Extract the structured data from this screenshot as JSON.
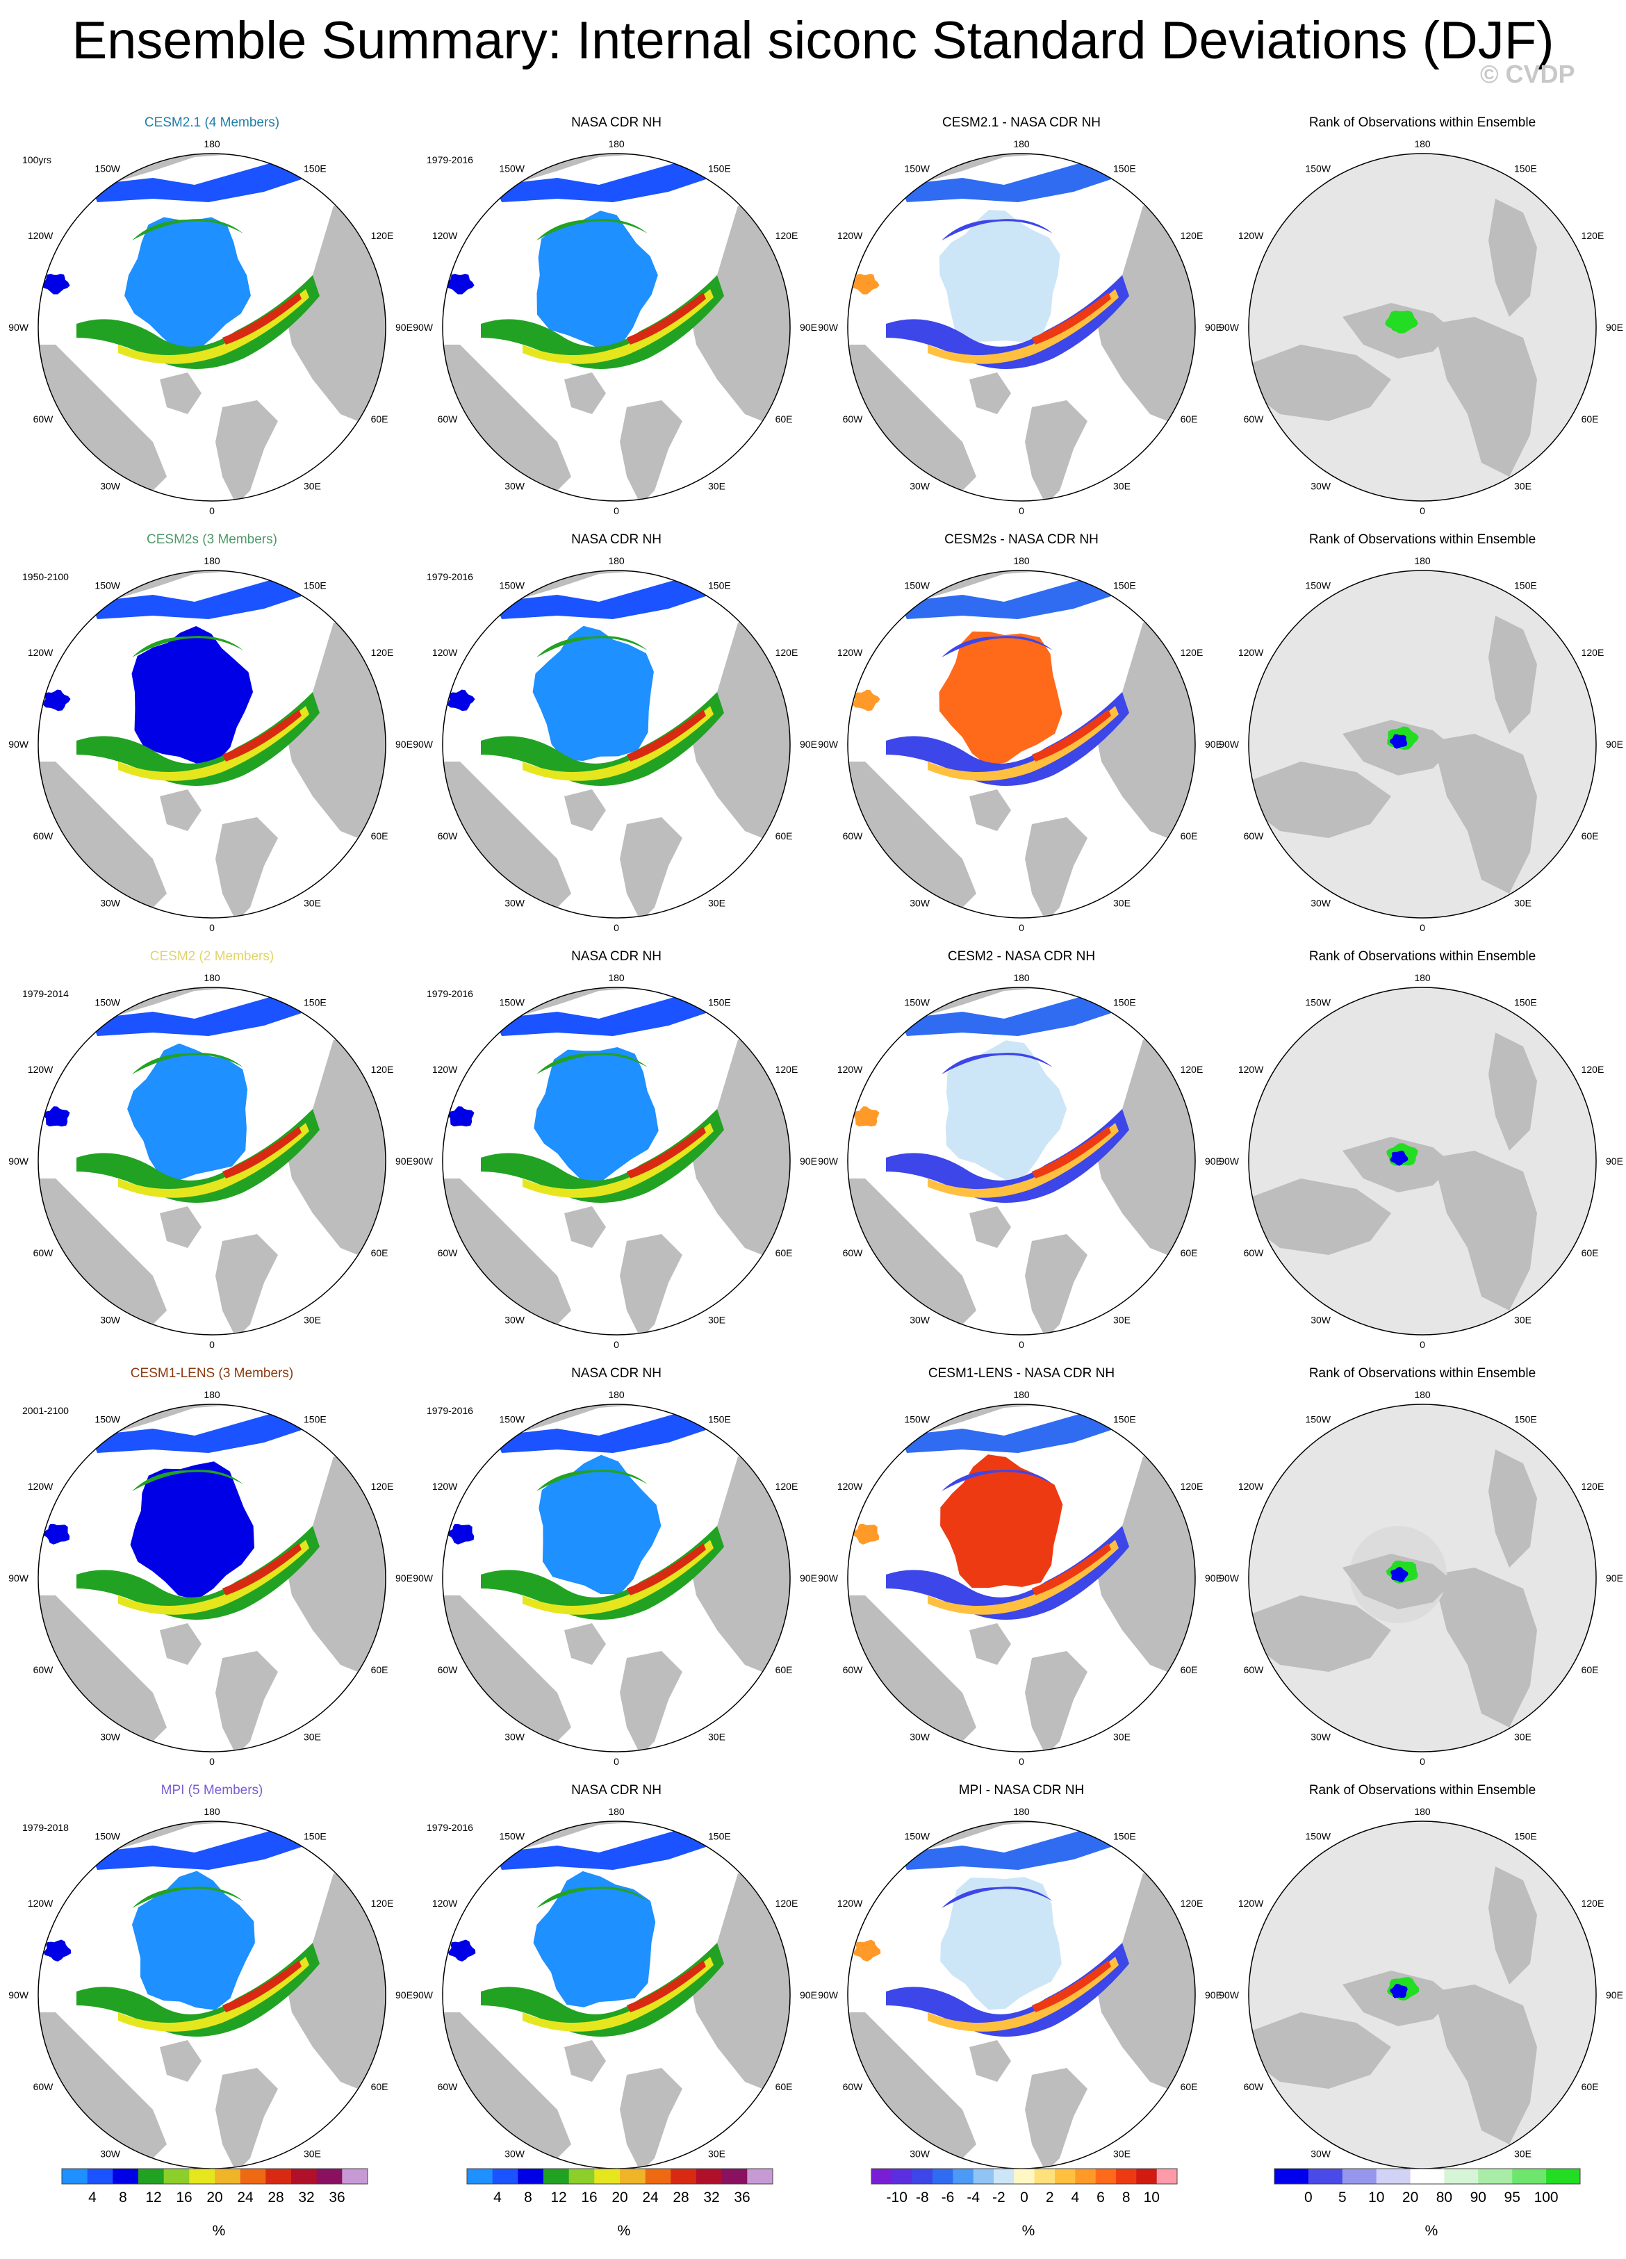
{
  "title": "Ensemble Summary: Internal siconc Standard Deviations (DJF)",
  "watermark": "© CVDP",
  "colors": {
    "land": "#bdbdbd",
    "ocean_blank": "#ffffff",
    "rank_background": "#e6e6e6",
    "model_title_colors": [
      "#1f7fa8",
      "#4f9a6a",
      "#e3d36a",
      "#8b3a0e",
      "#7a5cd6"
    ]
  },
  "longitude_labels": [
    "180",
    "150E",
    "120E",
    "90E",
    "60E",
    "30E",
    "0",
    "30W",
    "60W",
    "90W",
    "120W",
    "150W"
  ],
  "rows": [
    {
      "model": "CESM2.1 (4 Members)",
      "model_period": "100yrs",
      "obs": "NASA CDR NH",
      "obs_period": "1979-2016",
      "diff": "CESM2.1 - NASA CDR NH",
      "rank": "Rank of Observations within Ensemble"
    },
    {
      "model": "CESM2s (3 Members)",
      "model_period": "1950-2100",
      "obs": "NASA CDR NH",
      "obs_period": "1979-2016",
      "diff": "CESM2s - NASA CDR NH",
      "rank": "Rank of Observations within Ensemble"
    },
    {
      "model": "CESM2 (2 Members)",
      "model_period": "1979-2014",
      "obs": "NASA CDR NH",
      "obs_period": "1979-2016",
      "diff": "CESM2 - NASA CDR NH",
      "rank": "Rank of Observations within Ensemble"
    },
    {
      "model": "CESM1-LENS (3 Members)",
      "model_period": "2001-2100",
      "obs": "NASA CDR NH",
      "obs_period": "1979-2016",
      "diff": "CESM1-LENS - NASA CDR NH",
      "rank": "Rank of Observations within Ensemble"
    },
    {
      "model": "MPI (5 Members)",
      "model_period": "1979-2018",
      "obs": "NASA CDR NH",
      "obs_period": "1979-2016",
      "diff": "MPI - NASA CDR NH",
      "rank": "Rank of Observations within Ensemble"
    }
  ],
  "chart_data": [
    {
      "type": "heatmap",
      "description_kind": "polar stereographic sea-ice concentration standard deviation maps",
      "columns": [
        "model",
        "observations",
        "difference",
        "rank"
      ],
      "colorbars": [
        {
          "name": "std",
          "unit": "%",
          "tick_labels": [
            "4",
            "8",
            "12",
            "16",
            "20",
            "24",
            "28",
            "32",
            "36"
          ],
          "colors": [
            "#1e90ff",
            "#1a53ff",
            "#0000e6",
            "#22a222",
            "#8ccf2a",
            "#e6e61e",
            "#f0b428",
            "#ee6a12",
            "#d82a12",
            "#b0102a",
            "#8a1060",
            "#c79ad6"
          ]
        },
        {
          "name": "std",
          "unit": "%",
          "tick_labels": [
            "4",
            "8",
            "12",
            "16",
            "20",
            "24",
            "28",
            "32",
            "36"
          ],
          "colors": [
            "#1e90ff",
            "#1a53ff",
            "#0000e6",
            "#22a222",
            "#8ccf2a",
            "#e6e61e",
            "#f0b428",
            "#ee6a12",
            "#d82a12",
            "#b0102a",
            "#8a1060",
            "#c79ad6"
          ]
        },
        {
          "name": "diff",
          "unit": "%",
          "tick_labels": [
            "-10",
            "-8",
            "-6",
            "-4",
            "-2",
            "0",
            "2",
            "4",
            "6",
            "8",
            "10"
          ],
          "colors": [
            "#7a1ed6",
            "#5b2ee0",
            "#3d46e8",
            "#2f6cf2",
            "#4b9af5",
            "#8fc4f5",
            "#cde6f7",
            "#fff8c4",
            "#ffe07a",
            "#ffc040",
            "#ff9a28",
            "#ff6a1a",
            "#ee3a12",
            "#d01a12",
            "#ff9aa8"
          ]
        },
        {
          "name": "rank",
          "unit": "%",
          "tick_labels": [
            "0",
            "5",
            "10",
            "20",
            "80",
            "90",
            "95",
            "100"
          ],
          "colors": [
            "#0000ee",
            "#4a4ae8",
            "#9696ec",
            "#d2d2f6",
            "#ffffff",
            "#d6f5d6",
            "#a8eca8",
            "#6ee66e",
            "#22dd22"
          ]
        }
      ]
    }
  ]
}
